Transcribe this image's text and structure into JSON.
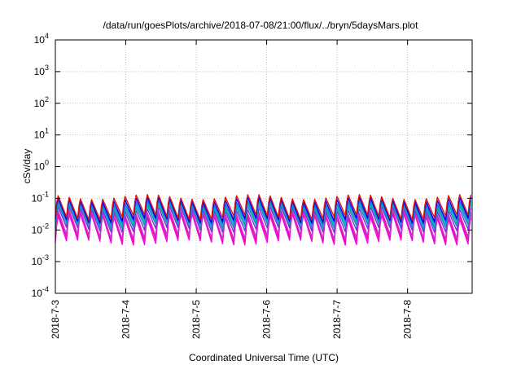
{
  "chart_data": {
    "type": "line",
    "title": "/data/run/goesPlots/archive/2018-07-08/21:00/flux/../bryn/5daysMars.plot",
    "xlabel": "Coordinated Universal Time (UTC)",
    "ylabel": "cSv/day",
    "yscale": "log",
    "ylim": [
      0.0001,
      10000
    ],
    "xlim": [
      "2018-07-03 00:00",
      "2018-07-08 22:00"
    ],
    "grid": true,
    "x_ticks": [
      "2018-7-3",
      "2018-7-4",
      "2018-7-5",
      "2018-7-6",
      "2018-7-7",
      "2018-7-8"
    ],
    "y_ticks": [
      {
        "base": "10",
        "exp": "-4"
      },
      {
        "base": "10",
        "exp": "-3"
      },
      {
        "base": "10",
        "exp": "-2"
      },
      {
        "base": "10",
        "exp": "-1"
      },
      {
        "base": "10",
        "exp": "0"
      },
      {
        "base": "10",
        "exp": "1"
      },
      {
        "base": "10",
        "exp": "2"
      },
      {
        "base": "10",
        "exp": "3"
      },
      {
        "base": "10",
        "exp": "4"
      }
    ],
    "oscillation_period_hours": 3.8,
    "series": [
      {
        "color": "#ff00ff",
        "peak": 0.03,
        "trough": 0.004
      },
      {
        "color": "#e0119a",
        "peak": 0.035,
        "trough": 0.005
      },
      {
        "color": "#cc33cc",
        "peak": 0.04,
        "trough": 0.006
      },
      {
        "color": "#7733dd",
        "peak": 0.05,
        "trough": 0.01
      },
      {
        "color": "#1f8fbf",
        "peak": 0.06,
        "trough": 0.013
      },
      {
        "color": "#00b3b3",
        "peak": 0.07,
        "trough": 0.015
      },
      {
        "color": "#2266ee",
        "peak": 0.08,
        "trough": 0.018
      },
      {
        "color": "#0000ee",
        "peak": 0.1,
        "trough": 0.02
      },
      {
        "color": "#dd1111",
        "peak": 0.12,
        "trough": 0.025
      }
    ]
  }
}
